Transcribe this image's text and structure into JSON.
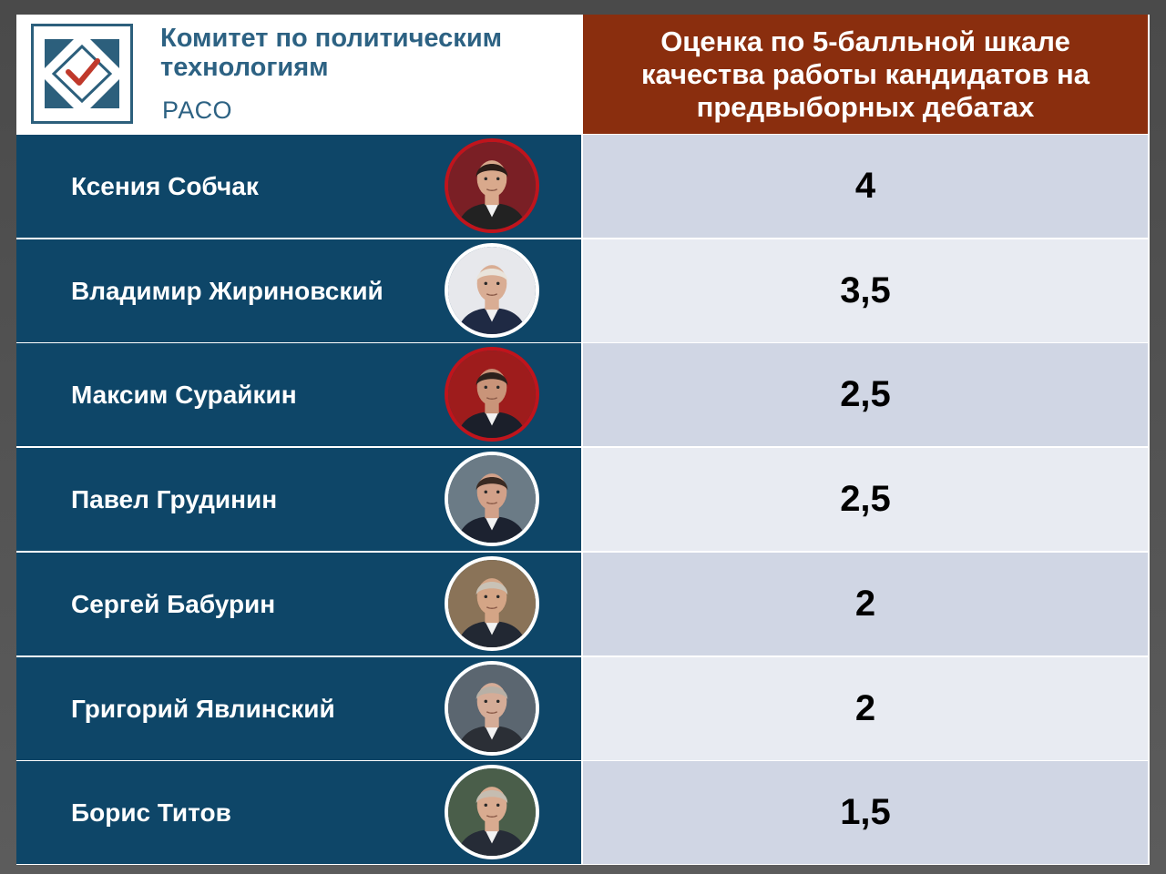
{
  "header": {
    "logo_title": "Комитет по политическим технологиям",
    "logo_subtitle": "РАСО",
    "column_title": "Оценка по 5-балльной шкале качества работы кандидатов на предвыборных дебатах"
  },
  "colors": {
    "name_column": "#0e4668",
    "header_accent": "#8a2e0e",
    "score_row_dark": "#d0d6e4",
    "score_row_light": "#e8ebf2",
    "logo_blue": "#2d6283",
    "logo_check": "#c0392b"
  },
  "rows": [
    {
      "name": "Ксения Собчак",
      "score": "4",
      "ring": "#c0141c",
      "bg": "#7a1f25",
      "skin": "#d9a98c",
      "hair": "#2a1d18",
      "suit": "#222222"
    },
    {
      "name": "Владимир Жириновский",
      "score": "3,5",
      "ring": "#ffffff",
      "bg": "#e7e8ec",
      "skin": "#d9ad94",
      "hair": "#e9e4dc",
      "suit": "#1f2a44"
    },
    {
      "name": "Максим Сурайкин",
      "score": "2,5",
      "ring": "#c0141c",
      "bg": "#9e1c1c",
      "skin": "#c99479",
      "hair": "#2b211c",
      "suit": "#1b1f2a"
    },
    {
      "name": "Павел Грудинин",
      "score": "2,5",
      "ring": "#ffffff",
      "bg": "#6b7b86",
      "skin": "#d2a189",
      "hair": "#3a2a22",
      "suit": "#1c2230"
    },
    {
      "name": "Сергей Бабурин",
      "score": "2",
      "ring": "#ffffff",
      "bg": "#8a7358",
      "skin": "#d4a586",
      "hair": "#c9c2b6",
      "suit": "#222833"
    },
    {
      "name": "Григорий Явлинский",
      "score": "2",
      "ring": "#ffffff",
      "bg": "#5b6670",
      "skin": "#d5ac97",
      "hair": "#b7b0a6",
      "suit": "#2b2f36"
    },
    {
      "name": "Борис Титов",
      "score": "1,5",
      "ring": "#ffffff",
      "bg": "#4a5e4a",
      "skin": "#d9ab90",
      "hair": "#c5bdb1",
      "suit": "#262c37"
    }
  ]
}
